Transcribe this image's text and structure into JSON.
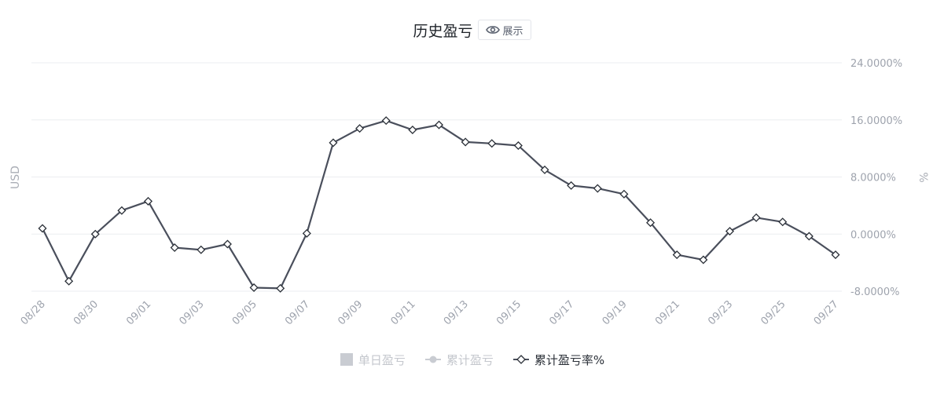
{
  "header": {
    "title": "历史盈亏",
    "toggle_label": "展示"
  },
  "legend": {
    "items": [
      {
        "label": "单日盈亏",
        "active": false
      },
      {
        "label": "累计盈亏",
        "active": false
      },
      {
        "label": "累计盈亏率%",
        "active": true
      }
    ]
  },
  "colors": {
    "line": "#4a4f5c",
    "grid": "#ebedf0",
    "axis_text": "#9ea3ad",
    "legend_inactive": "#c4c7cd"
  },
  "chart_data": {
    "type": "line",
    "left_axis_label": "USD",
    "right_axis_label": "%",
    "ylim": [
      -8,
      24
    ],
    "y_ticks": [
      "24.0000%",
      "16.0000%",
      "8.0000%",
      "0.0000%",
      "-8.0000%"
    ],
    "y_tick_values": [
      24,
      16,
      8,
      0,
      -8
    ],
    "x_tick_labels": [
      "08/28",
      "08/30",
      "09/01",
      "09/03",
      "09/05",
      "09/07",
      "09/09",
      "09/11",
      "09/13",
      "09/15",
      "09/17",
      "09/19",
      "09/21",
      "09/23",
      "09/25",
      "09/27"
    ],
    "x": [
      "08/28",
      "08/29",
      "08/30",
      "08/31",
      "09/01",
      "09/02",
      "09/03",
      "09/04",
      "09/05",
      "09/06",
      "09/07",
      "09/08",
      "09/09",
      "09/10",
      "09/11",
      "09/12",
      "09/13",
      "09/14",
      "09/15",
      "09/16",
      "09/17",
      "09/18",
      "09/19",
      "09/20",
      "09/21",
      "09/22",
      "09/23",
      "09/24",
      "09/25",
      "09/26",
      "09/27"
    ],
    "series": [
      {
        "name": "累计盈亏率%",
        "values": [
          0.8,
          -6.6,
          0.0,
          3.3,
          4.6,
          -1.9,
          -2.2,
          -1.4,
          -7.5,
          -7.6,
          0.1,
          12.8,
          14.8,
          15.9,
          14.6,
          15.3,
          12.9,
          12.7,
          12.4,
          9.0,
          6.8,
          6.4,
          5.6,
          1.6,
          -2.9,
          -3.6,
          0.4,
          2.3,
          1.7,
          -0.3,
          -2.9
        ]
      }
    ],
    "grid": true,
    "legend_position": "bottom"
  }
}
